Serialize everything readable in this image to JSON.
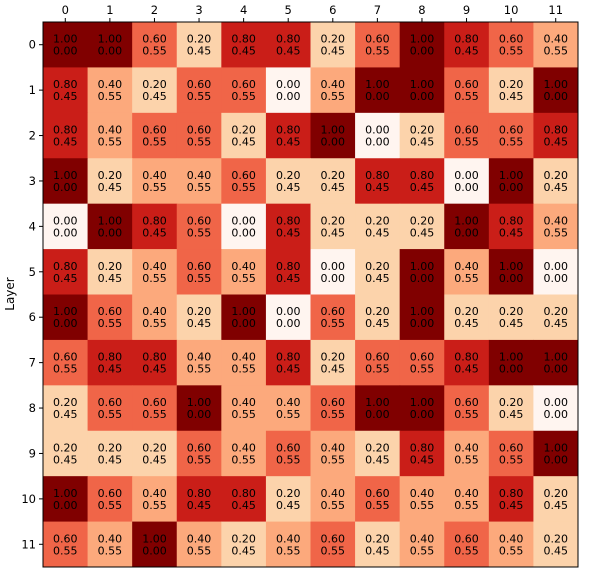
{
  "chart_data": {
    "type": "heatmap",
    "title": "",
    "xlabel": "",
    "ylabel": "Layer",
    "x_ticks": [
      "0",
      "1",
      "2",
      "3",
      "4",
      "5",
      "6",
      "7",
      "8",
      "9",
      "10",
      "11"
    ],
    "y_ticks": [
      "0",
      "1",
      "2",
      "3",
      "4",
      "5",
      "6",
      "7",
      "8",
      "9",
      "10",
      "11"
    ],
    "x_axis_position": "top",
    "colormap": "Reds",
    "value_range": [
      0.0,
      1.0
    ],
    "grid": false,
    "cell_values": [
      [
        1.0,
        1.0,
        0.6,
        0.2,
        0.8,
        0.8,
        0.2,
        0.6,
        1.0,
        0.8,
        0.6,
        0.4
      ],
      [
        0.8,
        0.4,
        0.2,
        0.6,
        0.6,
        0.0,
        0.4,
        1.0,
        1.0,
        0.6,
        0.2,
        1.0
      ],
      [
        0.8,
        0.4,
        0.6,
        0.6,
        0.2,
        0.8,
        1.0,
        0.0,
        0.2,
        0.6,
        0.6,
        0.8
      ],
      [
        1.0,
        0.2,
        0.4,
        0.4,
        0.6,
        0.2,
        0.2,
        0.8,
        0.8,
        0.0,
        1.0,
        0.2
      ],
      [
        0.0,
        1.0,
        0.8,
        0.6,
        0.0,
        0.8,
        0.2,
        0.2,
        0.2,
        1.0,
        0.8,
        0.4
      ],
      [
        0.8,
        0.2,
        0.4,
        0.6,
        0.4,
        0.8,
        0.0,
        0.2,
        1.0,
        0.4,
        1.0,
        0.0
      ],
      [
        1.0,
        0.6,
        0.4,
        0.2,
        1.0,
        0.0,
        0.6,
        0.2,
        1.0,
        0.2,
        0.2,
        0.2
      ],
      [
        0.6,
        0.8,
        0.8,
        0.4,
        0.4,
        0.8,
        0.2,
        0.6,
        0.6,
        0.8,
        1.0,
        1.0
      ],
      [
        0.2,
        0.6,
        0.6,
        1.0,
        0.4,
        0.4,
        0.6,
        1.0,
        1.0,
        0.6,
        0.2,
        0.0
      ],
      [
        0.2,
        0.2,
        0.2,
        0.6,
        0.4,
        0.6,
        0.4,
        0.2,
        0.8,
        0.4,
        0.6,
        1.0
      ],
      [
        1.0,
        0.6,
        0.4,
        0.8,
        0.8,
        0.2,
        0.4,
        0.6,
        0.4,
        0.4,
        0.8,
        0.2
      ],
      [
        0.6,
        0.4,
        1.0,
        0.4,
        0.2,
        0.4,
        0.6,
        0.2,
        0.4,
        0.6,
        0.4,
        0.2
      ]
    ],
    "cell_secondary_values": [
      [
        0.0,
        0.0,
        0.55,
        0.45,
        0.45,
        0.45,
        0.45,
        0.55,
        0.0,
        0.45,
        0.55,
        0.55
      ],
      [
        0.45,
        0.55,
        0.45,
        0.55,
        0.55,
        0.0,
        0.55,
        0.0,
        0.0,
        0.55,
        0.45,
        0.0
      ],
      [
        0.45,
        0.55,
        0.55,
        0.55,
        0.45,
        0.45,
        0.0,
        0.0,
        0.45,
        0.55,
        0.55,
        0.45
      ],
      [
        0.0,
        0.45,
        0.55,
        0.55,
        0.55,
        0.45,
        0.45,
        0.45,
        0.45,
        0.0,
        0.0,
        0.45
      ],
      [
        0.0,
        0.0,
        0.45,
        0.55,
        0.0,
        0.45,
        0.45,
        0.45,
        0.45,
        0.0,
        0.45,
        0.55
      ],
      [
        0.45,
        0.45,
        0.55,
        0.55,
        0.55,
        0.45,
        0.0,
        0.45,
        0.0,
        0.55,
        0.0,
        0.0
      ],
      [
        0.0,
        0.55,
        0.55,
        0.45,
        0.0,
        0.0,
        0.55,
        0.45,
        0.0,
        0.45,
        0.45,
        0.45
      ],
      [
        0.55,
        0.45,
        0.45,
        0.55,
        0.55,
        0.45,
        0.45,
        0.55,
        0.55,
        0.45,
        0.0,
        0.0
      ],
      [
        0.45,
        0.55,
        0.55,
        0.0,
        0.55,
        0.55,
        0.55,
        0.0,
        0.0,
        0.55,
        0.45,
        0.0
      ],
      [
        0.45,
        0.45,
        0.45,
        0.55,
        0.55,
        0.55,
        0.55,
        0.45,
        0.45,
        0.55,
        0.55,
        0.0
      ],
      [
        0.0,
        0.55,
        0.55,
        0.45,
        0.45,
        0.45,
        0.55,
        0.55,
        0.55,
        0.55,
        0.45,
        0.45
      ],
      [
        0.55,
        0.55,
        0.0,
        0.55,
        0.45,
        0.55,
        0.55,
        0.45,
        0.55,
        0.55,
        0.55,
        0.45
      ]
    ]
  }
}
